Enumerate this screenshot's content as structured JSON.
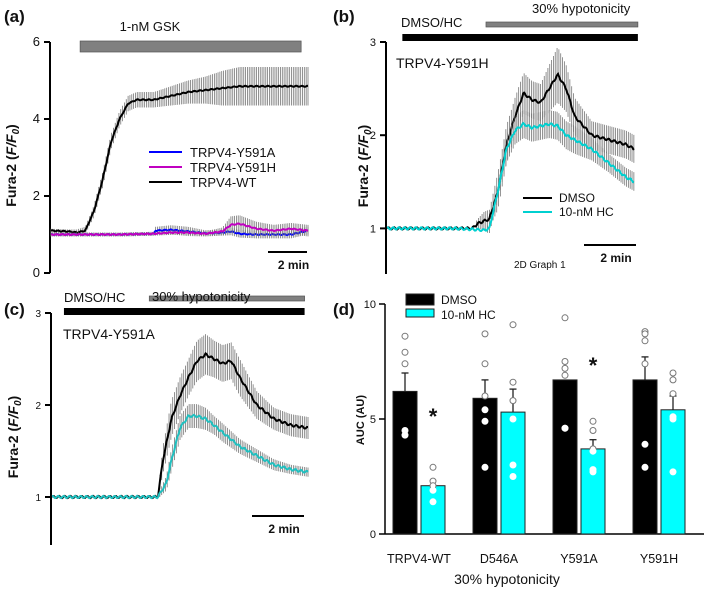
{
  "chart_data": [
    {
      "panel": "(a)",
      "type": "line",
      "title": "",
      "xlabel": "",
      "ylabel": "Fura-2 (F/F0)",
      "ylim": [
        0,
        6
      ],
      "yticks": [
        "0",
        "2",
        "4",
        "6"
      ],
      "xlim": [
        0,
        15
      ],
      "treatment_bars": [
        {
          "label": "1-nM GSK",
          "start": 1.7,
          "end": 14.6,
          "color": "#808080"
        }
      ],
      "scalebar": "2 min",
      "legend": {
        "placement": "center-right",
        "entries": [
          "TRPV4-Y591A",
          "TRPV4-Y591H",
          "TRPV4-WT"
        ]
      },
      "series": [
        {
          "name": "TRPV4-WT",
          "color": "#000000",
          "error": true,
          "x": [
            0,
            1,
            1.5,
            2,
            2.5,
            3,
            3.5,
            4,
            4.5,
            5,
            6,
            7,
            8,
            9,
            10,
            11,
            12,
            13,
            14,
            15
          ],
          "y": [
            1.1,
            1.08,
            1.05,
            1.1,
            1.6,
            2.4,
            3.4,
            4.0,
            4.4,
            4.5,
            4.5,
            4.6,
            4.7,
            4.75,
            4.8,
            4.85,
            4.85,
            4.85,
            4.85,
            4.85
          ],
          "err": [
            0.05,
            0.05,
            0.08,
            0.1,
            0.15,
            0.2,
            0.2,
            0.2,
            0.2,
            0.2,
            0.2,
            0.25,
            0.3,
            0.35,
            0.45,
            0.5,
            0.5,
            0.5,
            0.5,
            0.5
          ]
        },
        {
          "name": "TRPV4-Y591A",
          "color": "#0000ff",
          "error": false,
          "x": [
            0,
            2,
            4,
            6,
            6.1,
            7,
            8,
            9,
            10,
            10.5,
            11,
            12,
            13,
            14,
            15
          ],
          "y": [
            1.0,
            1.0,
            1.0,
            1.02,
            1.1,
            1.12,
            1.08,
            1.03,
            1.05,
            1.08,
            1.02,
            1.0,
            1.0,
            1.0,
            1.1
          ],
          "err": [
            0.05,
            0.05,
            0.05,
            0.05,
            0.1,
            0.12,
            0.12,
            0.08,
            0.08,
            0.1,
            0.1,
            0.1,
            0.1,
            0.1,
            0.1
          ]
        },
        {
          "name": "TRPV4-Y591H",
          "color": "#c000c0",
          "error": false,
          "x": [
            0,
            2,
            4,
            6,
            7,
            8,
            9,
            10,
            10.5,
            11,
            12,
            13,
            14,
            15
          ],
          "y": [
            1.0,
            1.0,
            1.0,
            1.02,
            1.05,
            1.05,
            1.02,
            1.08,
            1.25,
            1.28,
            1.15,
            1.1,
            1.15,
            1.1
          ],
          "err": [
            0.05,
            0.05,
            0.05,
            0.05,
            0.06,
            0.06,
            0.06,
            0.1,
            0.22,
            0.22,
            0.18,
            0.15,
            0.15,
            0.15
          ]
        }
      ]
    },
    {
      "panel": "(b)",
      "type": "line",
      "annotation": "TRPV4-Y591H",
      "ylabel": "Fura-2 (F/F0)",
      "ylim": [
        0.5,
        3
      ],
      "yticks": [
        "1",
        "2",
        "3"
      ],
      "xlim": [
        0,
        15
      ],
      "treatment_bars": [
        {
          "label": "DMSO/HC",
          "start": 0.9,
          "end": 14.7,
          "color": "#000000"
        },
        {
          "label": "30% hypotonicity",
          "start": 5.8,
          "end": 14.7,
          "color": "#808080"
        }
      ],
      "scalebar": "2 min",
      "extra_text": "2D Graph 1",
      "legend": {
        "placement": "bottom-right",
        "entries": [
          "DMSO",
          "10-nM  HC"
        ]
      },
      "series": [
        {
          "name": "DMSO",
          "color": "#000000",
          "x": [
            0,
            2,
            4,
            5,
            5.3,
            5.7,
            6.0,
            6.5,
            7,
            7.5,
            8,
            8.5,
            9,
            9.5,
            10,
            10.5,
            11,
            12,
            13,
            14,
            14.5
          ],
          "y": [
            1.0,
            1.0,
            1.0,
            1.0,
            1.05,
            1.08,
            1.1,
            1.4,
            1.9,
            2.2,
            2.45,
            2.38,
            2.35,
            2.5,
            2.65,
            2.5,
            2.2,
            2.0,
            1.95,
            1.9,
            1.85
          ],
          "err": [
            0.01,
            0.01,
            0.01,
            0.01,
            0.05,
            0.1,
            0.1,
            0.2,
            0.2,
            0.2,
            0.22,
            0.2,
            0.2,
            0.25,
            0.3,
            0.25,
            0.2,
            0.15,
            0.15,
            0.15,
            0.15
          ]
        },
        {
          "name": "10-nM  HC",
          "color": "#00d0d0",
          "x": [
            0,
            2,
            4,
            5,
            5.7,
            6.0,
            6.5,
            7,
            7.5,
            8,
            8.5,
            9,
            9.5,
            10,
            10.5,
            11,
            12,
            13,
            14,
            14.5
          ],
          "y": [
            1.0,
            1.0,
            1.0,
            0.99,
            0.98,
            1.0,
            1.4,
            1.85,
            2.05,
            2.12,
            2.08,
            2.1,
            2.12,
            2.1,
            2.0,
            1.95,
            1.85,
            1.7,
            1.55,
            1.5
          ],
          "err": [
            0.01,
            0.01,
            0.01,
            0.01,
            0.02,
            0.05,
            0.1,
            0.15,
            0.15,
            0.15,
            0.15,
            0.15,
            0.15,
            0.15,
            0.15,
            0.15,
            0.12,
            0.1,
            0.1,
            0.1
          ]
        }
      ]
    },
    {
      "panel": "(c)",
      "type": "line",
      "annotation": "TRPV4-Y591A",
      "ylabel": "Fura-2 (F/F0)",
      "ylim": [
        0.5,
        3
      ],
      "yticks": [
        "1",
        "2",
        "3"
      ],
      "xlim": [
        0,
        15
      ],
      "treatment_bars": [
        {
          "label": "DMSO/HC",
          "start": 0.7,
          "end": 14.8,
          "color": "#000000"
        },
        {
          "label": "30% hypotonicity",
          "start": 5.7,
          "end": 14.8,
          "color": "#808080"
        }
      ],
      "scalebar": "2 min",
      "series": [
        {
          "name": "DMSO",
          "color": "#000000",
          "x": [
            0,
            2,
            4,
            5.5,
            6.2,
            6.5,
            7,
            7.5,
            8,
            8.5,
            9,
            9.5,
            10,
            10.5,
            11,
            12,
            13,
            14,
            15
          ],
          "y": [
            1.0,
            1.0,
            1.0,
            1.0,
            1.0,
            1.4,
            1.85,
            2.1,
            2.3,
            2.48,
            2.55,
            2.5,
            2.45,
            2.48,
            2.3,
            2.0,
            1.85,
            1.78,
            1.75
          ],
          "err": [
            0.01,
            0.01,
            0.01,
            0.01,
            0.03,
            0.15,
            0.2,
            0.2,
            0.2,
            0.22,
            0.22,
            0.2,
            0.2,
            0.2,
            0.2,
            0.15,
            0.12,
            0.12,
            0.12
          ]
        },
        {
          "name": "10-nM HC",
          "color": "#20c0c0",
          "x": [
            0,
            2,
            4,
            5.5,
            6.2,
            6.7,
            7,
            7.5,
            8,
            8.5,
            9,
            9.5,
            10,
            11,
            12,
            13,
            14,
            15
          ],
          "y": [
            1.0,
            1.0,
            1.0,
            1.0,
            1.0,
            1.15,
            1.4,
            1.75,
            1.88,
            1.88,
            1.85,
            1.78,
            1.7,
            1.55,
            1.45,
            1.35,
            1.3,
            1.27
          ],
          "err": [
            0.01,
            0.01,
            0.01,
            0.01,
            0.02,
            0.08,
            0.12,
            0.13,
            0.13,
            0.13,
            0.12,
            0.1,
            0.1,
            0.08,
            0.07,
            0.06,
            0.05,
            0.05
          ]
        }
      ]
    },
    {
      "panel": "(d)",
      "type": "bar",
      "xlabel": "30% hypotonicity",
      "ylabel": "AUC (AU)",
      "ylim": [
        0,
        10
      ],
      "yticks": [
        "0",
        "5",
        "10"
      ],
      "categories": [
        "TRPV4-WT",
        "D546A",
        "Y591A",
        "Y591H"
      ],
      "legend": {
        "placement": "top-left",
        "entries": [
          "DMSO",
          "10-nM HC"
        ]
      },
      "series": [
        {
          "name": "DMSO",
          "color": "#000000",
          "values": [
            6.2,
            5.9,
            6.7,
            6.7
          ],
          "sem": [
            0.8,
            0.8,
            0.0,
            1.0
          ],
          "points": [
            [
              8.6,
              7.9,
              7.4,
              4.5,
              4.3
            ],
            [
              8.7,
              7.4,
              6.0,
              5.4,
              4.9,
              2.9
            ],
            [
              9.4,
              7.5,
              7.2,
              6.9,
              4.6,
              4.6
            ],
            [
              8.8,
              8.7,
              8.4,
              7.4,
              3.9,
              2.9
            ]
          ]
        },
        {
          "name": "10-nM HC",
          "color": "#00ffff",
          "values": [
            2.1,
            5.3,
            3.7,
            5.4
          ],
          "sem": [
            0.0,
            1.0,
            0.4,
            0.6
          ],
          "points": [
            [
              2.9,
              2.3,
              2.1,
              1.9,
              1.4
            ],
            [
              9.1,
              6.6,
              5.8,
              5.0,
              3.0,
              2.5
            ],
            [
              4.9,
              4.5,
              3.7,
              3.6,
              2.8,
              2.7
            ],
            [
              7.0,
              6.7,
              6.1,
              5.1,
              5.0,
              2.7
            ]
          ]
        }
      ],
      "significance": [
        {
          "category": "TRPV4-WT",
          "mark": "*"
        },
        {
          "category": "Y591A",
          "mark": "*"
        }
      ]
    }
  ]
}
